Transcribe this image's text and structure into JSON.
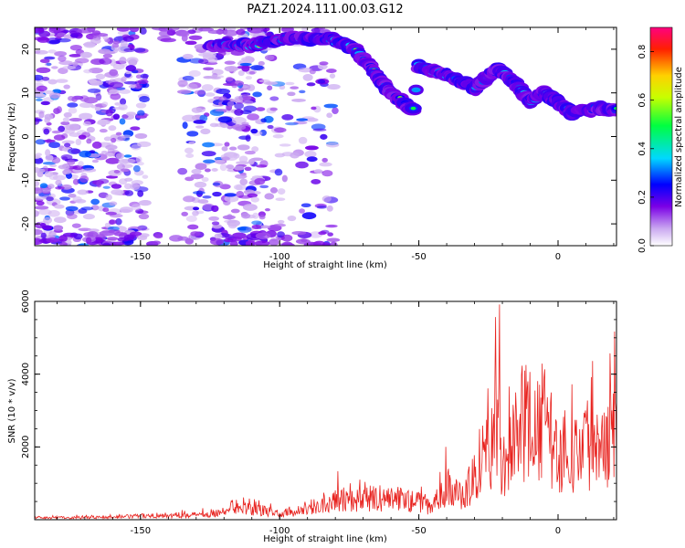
{
  "chart_data": [
    {
      "type": "heatmap",
      "title": "PAZ1.2024.111.00.03.G12",
      "xlabel": "Height of straight line (km)",
      "ylabel": "Frequency (Hz)",
      "xlim": [
        -188,
        21
      ],
      "ylim": [
        -25,
        25
      ],
      "xticks": [
        -150,
        -100,
        -50,
        0
      ],
      "yticks": [
        -20,
        -10,
        0,
        10,
        20
      ],
      "colorbar": {
        "label": "Normalized spectral amplitude",
        "range": [
          0,
          0.9
        ],
        "ticks": [
          0.0,
          0.2,
          0.4,
          0.6,
          0.8
        ],
        "colormap": [
          "#ffffff",
          "#c9a6f0",
          "#7a00e6",
          "#0000ff",
          "#00d8ff",
          "#00ff40",
          "#c8ff00",
          "#ffd000",
          "#ff2000",
          "#ff0080"
        ]
      },
      "ridge": {
        "description": "high-amplitude dispersive trace",
        "points": [
          [
            -125,
            21
          ],
          [
            -110,
            21
          ],
          [
            -95,
            22.5
          ],
          [
            -82,
            22.5
          ],
          [
            -73,
            20
          ],
          [
            -65,
            14
          ],
          [
            -60,
            10
          ],
          [
            -52,
            6
          ],
          [
            -50,
            16
          ],
          [
            -40,
            14
          ],
          [
            -30,
            11
          ],
          [
            -22,
            15.5
          ],
          [
            -15,
            12
          ],
          [
            -10,
            8
          ],
          [
            -5,
            10
          ],
          [
            0,
            8
          ],
          [
            5,
            5.5
          ],
          [
            15,
            6.5
          ],
          [
            21,
            6
          ]
        ]
      },
      "noise_region": [
        -188,
        -80
      ]
    },
    {
      "type": "line",
      "xlabel": "Height of straight line (km)",
      "ylabel": "SNR (10 * v/v)",
      "xlim": [
        -188,
        21
      ],
      "ylim": [
        0,
        6000
      ],
      "xticks": [
        -150,
        -100,
        -50,
        0
      ],
      "yticks": [
        2000,
        4000,
        6000
      ],
      "series": [
        {
          "color": "#e8231f",
          "envelope": [
            [
              -188,
              80
            ],
            [
              -160,
              100
            ],
            [
              -150,
              150
            ],
            [
              -140,
              180
            ],
            [
              -130,
              200
            ],
            [
              -120,
              300
            ],
            [
              -112,
              450
            ],
            [
              -100,
              250
            ],
            [
              -90,
              350
            ],
            [
              -80,
              900
            ],
            [
              -70,
              800
            ],
            [
              -60,
              900
            ],
            [
              -50,
              700
            ],
            [
              -45,
              500
            ],
            [
              -40,
              1400
            ],
            [
              -35,
              900
            ],
            [
              -30,
              1700
            ],
            [
              -27,
              3000
            ],
            [
              -24,
              2800
            ],
            [
              -22,
              4000
            ],
            [
              -20,
              2500
            ],
            [
              -15,
              3000
            ],
            [
              -12,
              4200
            ],
            [
              -8,
              3300
            ],
            [
              -5,
              4300
            ],
            [
              -2,
              3000
            ],
            [
              0,
              2600
            ],
            [
              5,
              2700
            ],
            [
              10,
              3100
            ],
            [
              15,
              3400
            ],
            [
              21,
              3600
            ]
          ]
        }
      ]
    }
  ]
}
